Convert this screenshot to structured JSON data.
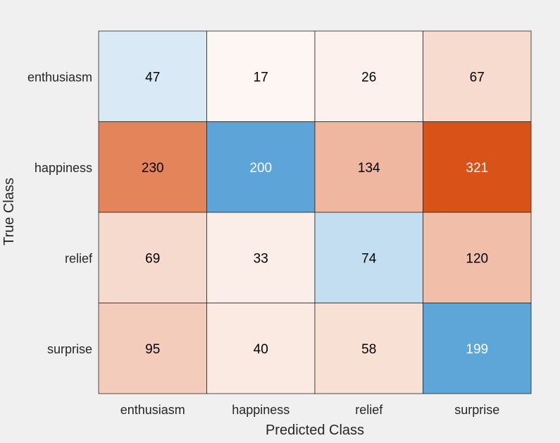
{
  "chart_data": {
    "type": "heatmap",
    "title": "",
    "xlabel": "Predicted Class",
    "ylabel": "True Class",
    "x_categories": [
      "enthusiasm",
      "happiness",
      "relief",
      "surprise"
    ],
    "y_categories": [
      "enthusiasm",
      "happiness",
      "relief",
      "surprise"
    ],
    "values": [
      [
        47,
        17,
        26,
        67
      ],
      [
        230,
        200,
        134,
        321
      ],
      [
        69,
        33,
        74,
        120
      ],
      [
        95,
        40,
        58,
        199
      ]
    ],
    "colors": {
      "diagonal_max": "#5da5d8",
      "offdiag_max": "#d95319",
      "white": "#ffffff",
      "background": "#f0f0f0",
      "border": "#262626",
      "text_dark": "#000000",
      "text_light": "#ffffff"
    }
  }
}
